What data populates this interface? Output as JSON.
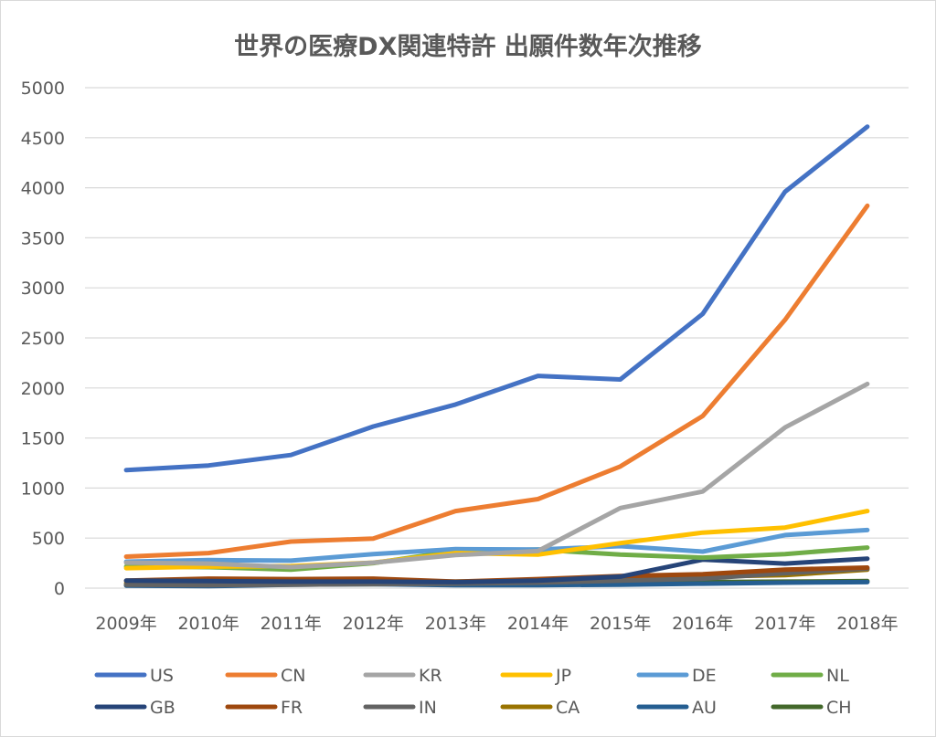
{
  "chart_data": {
    "type": "line",
    "title": "世界の医療DX関連特許 出願件数年次推移",
    "xlabel": "",
    "ylabel": "",
    "categories": [
      "2009年",
      "2010年",
      "2011年",
      "2012年",
      "2013年",
      "2014年",
      "2015年",
      "2016年",
      "2017年",
      "2018年"
    ],
    "ylim": [
      0,
      5000
    ],
    "yticks": [
      0,
      500,
      1000,
      1500,
      2000,
      2500,
      3000,
      3500,
      4000,
      4500,
      5000
    ],
    "grid": true,
    "legend_position": "bottom",
    "series": [
      {
        "name": "US",
        "color": "#4472c4",
        "values": [
          1180,
          1225,
          1330,
          1615,
          1835,
          2120,
          2085,
          2740,
          3960,
          4610
        ]
      },
      {
        "name": "CN",
        "color": "#ed7d31",
        "values": [
          315,
          350,
          465,
          495,
          770,
          890,
          1215,
          1720,
          2680,
          3820
        ]
      },
      {
        "name": "KR",
        "color": "#a5a5a5",
        "values": [
          255,
          245,
          210,
          255,
          330,
          370,
          800,
          965,
          1605,
          2040
        ]
      },
      {
        "name": "JP",
        "color": "#ffc000",
        "values": [
          200,
          215,
          220,
          255,
          350,
          335,
          450,
          555,
          605,
          770
        ]
      },
      {
        "name": "DE",
        "color": "#5b9bd5",
        "values": [
          265,
          280,
          275,
          340,
          390,
          385,
          420,
          365,
          530,
          580
        ]
      },
      {
        "name": "NL",
        "color": "#70ad47",
        "values": [
          215,
          210,
          185,
          250,
          370,
          385,
          335,
          305,
          340,
          405
        ]
      },
      {
        "name": "GB",
        "color": "#264478",
        "values": [
          75,
          70,
          65,
          65,
          60,
          75,
          115,
          285,
          245,
          295
        ]
      },
      {
        "name": "FR",
        "color": "#9e480e",
        "values": [
          75,
          95,
          90,
          95,
          65,
          90,
          120,
          140,
          185,
          205
        ]
      },
      {
        "name": "IN",
        "color": "#636363",
        "values": [
          35,
          30,
          35,
          40,
          45,
          55,
          75,
          95,
          150,
          195
        ]
      },
      {
        "name": "CA",
        "color": "#997300",
        "values": [
          50,
          55,
          60,
          60,
          65,
          75,
          90,
          115,
          130,
          185
        ]
      },
      {
        "name": "AU",
        "color": "#255e91",
        "values": [
          25,
          20,
          35,
          40,
          30,
          30,
          35,
          45,
          55,
          60
        ]
      },
      {
        "name": "CH",
        "color": "#43682b",
        "values": [
          30,
          35,
          40,
          40,
          45,
          50,
          50,
          60,
          65,
          70
        ]
      }
    ]
  }
}
